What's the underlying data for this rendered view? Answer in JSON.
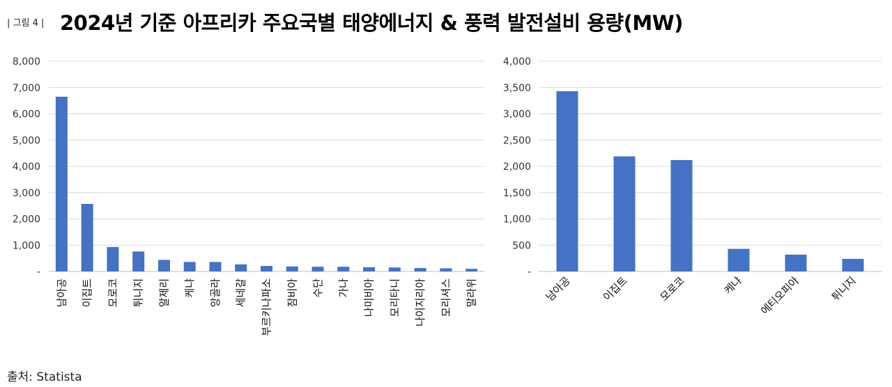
{
  "figure_label": "| 그림 4 |",
  "title": "2024년 기준 아프리카 주요국별 태양에너지 & 풍력 발전설비 용량(MW)",
  "source": "출처: Statista",
  "bar_color": "#4472c4",
  "chart_data": [
    {
      "type": "bar",
      "categories": [
        "남아공",
        "이집트",
        "모로코",
        "튀니지",
        "알제리",
        "케냐",
        "앙골라",
        "세네갈",
        "부르키나파소",
        "잠비아",
        "수단",
        "가나",
        "나미비아",
        "모리타니",
        "나이지리아",
        "모리셔스",
        "말라위"
      ],
      "values": [
        6650,
        2570,
        930,
        760,
        440,
        360,
        360,
        270,
        210,
        190,
        180,
        180,
        160,
        150,
        130,
        120,
        100
      ],
      "ylim": [
        0,
        8000
      ],
      "yticks": [
        0,
        1000,
        2000,
        3000,
        4000,
        5000,
        6000,
        7000,
        8000
      ],
      "ytick_labels": [
        "-",
        "1,000",
        "2,000",
        "3,000",
        "4,000",
        "5,000",
        "6,000",
        "7,000",
        "8,000"
      ],
      "grid": true
    },
    {
      "type": "bar",
      "categories": [
        "남아공",
        "이집트",
        "모로코",
        "케냐",
        "에티오피아",
        "튀니지"
      ],
      "values": [
        3430,
        2190,
        2120,
        430,
        320,
        240
      ],
      "ylim": [
        0,
        4000
      ],
      "yticks": [
        0,
        500,
        1000,
        1500,
        2000,
        2500,
        3000,
        3500,
        4000
      ],
      "ytick_labels": [
        "-",
        "500",
        "1,000",
        "1,500",
        "2,000",
        "2,500",
        "3,000",
        "3,500",
        "4,000"
      ],
      "grid": true
    }
  ]
}
